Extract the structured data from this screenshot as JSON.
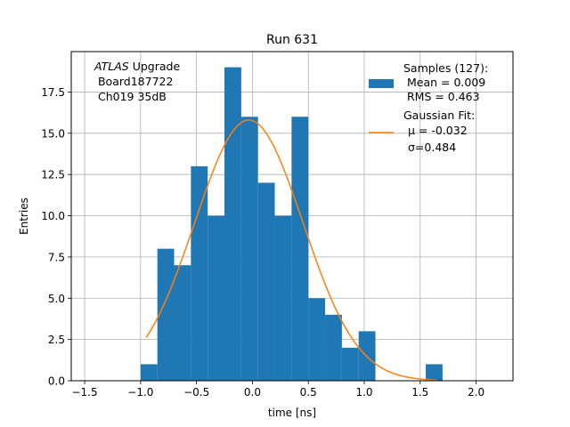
{
  "chart_data": {
    "type": "bar",
    "title": "Run 631",
    "xlabel": "time [ns]",
    "ylabel": "Entries",
    "xlim": [
      -1.62,
      2.33
    ],
    "ylim": [
      0,
      19.95
    ],
    "grid": true,
    "xticks": [
      -1.5,
      -1.0,
      -0.5,
      0.0,
      0.5,
      1.0,
      1.5,
      2.0
    ],
    "xtick_labels": [
      "−1.5",
      "−1.0",
      "−0.5",
      "0.0",
      "0.5",
      "1.0",
      "1.5",
      "2.0"
    ],
    "yticks": [
      0,
      2.5,
      5,
      7.5,
      10,
      12.5,
      15,
      17.5
    ],
    "ytick_labels": [
      "0.0",
      "2.5",
      "5.0",
      "7.5",
      "10.0",
      "12.5",
      "15.0",
      "17.5"
    ],
    "histogram": {
      "name": "Samples (127):",
      "color": "#1f77b4",
      "bins": [
        {
          "x0": -1.0,
          "x1": -0.85,
          "count": 1
        },
        {
          "x0": -0.85,
          "x1": -0.7,
          "count": 8
        },
        {
          "x0": -0.7,
          "x1": -0.55,
          "count": 7
        },
        {
          "x0": -0.55,
          "x1": -0.4,
          "count": 13
        },
        {
          "x0": -0.4,
          "x1": -0.25,
          "count": 10
        },
        {
          "x0": -0.25,
          "x1": -0.1,
          "count": 19
        },
        {
          "x0": -0.1,
          "x1": 0.05,
          "count": 16
        },
        {
          "x0": 0.05,
          "x1": 0.2,
          "count": 12
        },
        {
          "x0": 0.2,
          "x1": 0.35,
          "count": 10
        },
        {
          "x0": 0.35,
          "x1": 0.5,
          "count": 16
        },
        {
          "x0": 0.5,
          "x1": 0.65,
          "count": 5
        },
        {
          "x0": 0.65,
          "x1": 0.8,
          "count": 4
        },
        {
          "x0": 0.8,
          "x1": 0.95,
          "count": 2
        },
        {
          "x0": 0.95,
          "x1": 1.1,
          "count": 3
        },
        {
          "x0": 1.55,
          "x1": 1.7,
          "count": 1
        }
      ]
    },
    "fit": {
      "name": "Gaussian Fit:",
      "color": "#ff7f0e",
      "mu": -0.032,
      "sigma": 0.484,
      "amplitude": 15.8,
      "x_range": [
        -0.95,
        1.65
      ]
    },
    "legend": {
      "placement": "top-right",
      "samples_lines": [
        "Samples (127):",
        " Mean = 0.009",
        " RMS = 0.463"
      ],
      "fit_lines": [
        "Gaussian Fit:",
        "μ = -0.032",
        "σ=0.484"
      ]
    },
    "annotation": {
      "italic": "ATLAS",
      "lines": [
        " Upgrade",
        " Board187722",
        " Ch019 35dB"
      ]
    }
  }
}
